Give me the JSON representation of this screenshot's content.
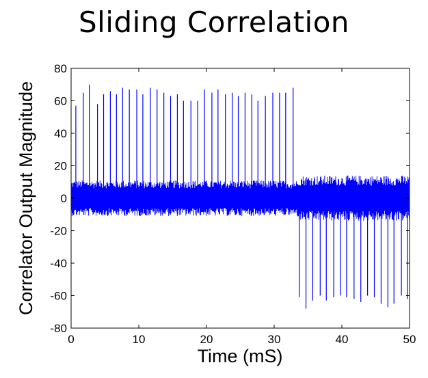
{
  "chart_data": {
    "type": "line",
    "title": "Sliding Correlation",
    "xlabel": "Time (mS)",
    "ylabel": "Correlator Output Magnitude",
    "xlim": [
      0,
      50
    ],
    "ylim": [
      -80,
      80
    ],
    "x_ticks": [
      0,
      10,
      20,
      30,
      40,
      50
    ],
    "y_ticks": [
      80,
      60,
      40,
      20,
      0,
      -20,
      -40,
      -60,
      -80
    ],
    "grid": false,
    "series": [
      {
        "name": "correlator output",
        "color": "#0000ff",
        "noise_band": [
          -11,
          11
        ],
        "noise_band_second_half": [
          -14,
          14
        ],
        "positive_peaks": {
          "x": [
            0.7,
            1.8,
            2.7,
            3.9,
            4.8,
            5.8,
            6.7,
            7.6,
            8.6,
            9.7,
            10.6,
            11.7,
            12.7,
            13.7,
            14.7,
            15.7,
            16.6,
            17.7,
            18.7,
            19.7,
            20.8,
            21.7,
            22.8,
            23.8,
            24.7,
            25.7,
            26.7,
            27.6,
            28.7,
            29.8,
            30.8,
            31.7,
            32.8
          ],
          "y": [
            57,
            65,
            70,
            58,
            64,
            66,
            64,
            68,
            67,
            67,
            64,
            68,
            67,
            65,
            63,
            64,
            60,
            60,
            60,
            67,
            65,
            67,
            64,
            65,
            63,
            65,
            64,
            60,
            63,
            65,
            65,
            65,
            68
          ]
        },
        "negative_peaks": {
          "x": [
            33.7,
            34.7,
            35.7,
            36.8,
            37.7,
            38.8,
            39.8,
            40.7,
            41.8,
            42.8,
            43.8,
            44.8,
            45.8,
            46.8,
            47.7,
            48.8,
            49.7
          ],
          "y": [
            -61,
            -68,
            -63,
            -60,
            -63,
            -61,
            -60,
            -61,
            -62,
            -64,
            -60,
            -61,
            -65,
            -67,
            -65,
            -60,
            -62
          ]
        }
      }
    ]
  }
}
